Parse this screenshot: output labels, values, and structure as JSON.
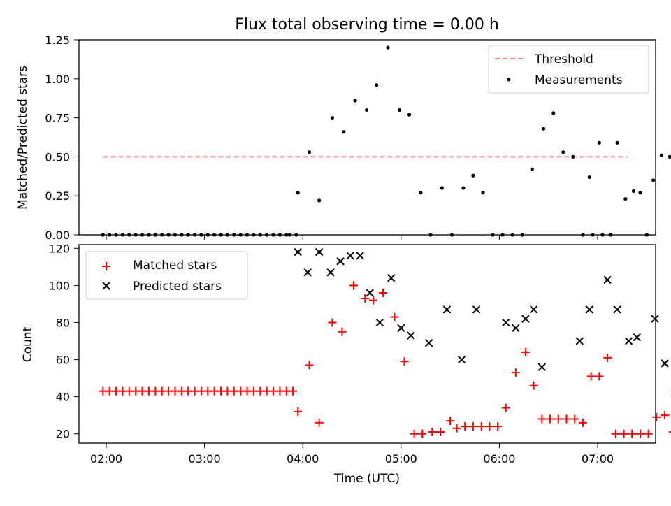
{
  "chart_data": [
    {
      "type": "scatter",
      "title": "Flux total observing time = 0.00 h",
      "xlabel": "",
      "ylabel": "Matched/Predicted stars",
      "ylim": [
        0,
        1.25
      ],
      "yticks": [
        "0.00",
        "0.25",
        "0.50",
        "0.75",
        "1.00",
        "1.25"
      ],
      "legend_position": "top-right",
      "threshold": {
        "name": "Threshold",
        "value": 0.5,
        "x_start": "01:58",
        "x_end": "07:18",
        "color": "#ff7f7f"
      },
      "series": [
        {
          "name": "Measurements",
          "color": "#000000",
          "marker": "dot",
          "points": [
            [
              "01:58",
              0
            ],
            [
              "02:06",
              0
            ],
            [
              "02:14",
              0
            ],
            [
              "02:22",
              0
            ],
            [
              "02:30",
              0
            ],
            [
              "02:38",
              0
            ],
            [
              "02:46",
              0
            ],
            [
              "02:54",
              0
            ],
            [
              "03:02",
              0
            ],
            [
              "03:10",
              0
            ],
            [
              "03:18",
              0
            ],
            [
              "03:26",
              0
            ],
            [
              "03:34",
              0
            ],
            [
              "03:42",
              0
            ],
            [
              "03:50",
              0
            ],
            [
              "03:56",
              0
            ],
            [
              "02:02",
              0
            ],
            [
              "02:10",
              0
            ],
            [
              "02:18",
              0
            ],
            [
              "02:26",
              0
            ],
            [
              "02:34",
              0
            ],
            [
              "02:42",
              0
            ],
            [
              "02:50",
              0
            ],
            [
              "02:58",
              0
            ],
            [
              "03:06",
              0
            ],
            [
              "03:14",
              0
            ],
            [
              "03:22",
              0
            ],
            [
              "03:30",
              0
            ],
            [
              "03:38",
              0
            ],
            [
              "03:46",
              0
            ],
            [
              "03:52",
              0
            ],
            [
              "03:57",
              0.27
            ],
            [
              "04:04",
              0.53
            ],
            [
              "04:10",
              0.22
            ],
            [
              "04:18",
              0.75
            ],
            [
              "04:25",
              0.66
            ],
            [
              "04:32",
              0.86
            ],
            [
              "04:39",
              0.8
            ],
            [
              "04:45",
              0.96
            ],
            [
              "04:52",
              1.2
            ],
            [
              "04:59",
              0.8
            ],
            [
              "05:05",
              0.77
            ],
            [
              "05:12",
              0.27
            ],
            [
              "05:18",
              0
            ],
            [
              "05:25",
              0.3
            ],
            [
              "05:31",
              0
            ],
            [
              "05:38",
              0.3
            ],
            [
              "05:44",
              0.38
            ],
            [
              "05:50",
              0.27
            ],
            [
              "05:56",
              0
            ],
            [
              "06:02",
              0
            ],
            [
              "06:08",
              0
            ],
            [
              "06:14",
              0
            ],
            [
              "06:20",
              0.42
            ],
            [
              "06:27",
              0.68
            ],
            [
              "06:33",
              0.78
            ],
            [
              "06:39",
              0.53
            ],
            [
              "06:45",
              0.5
            ],
            [
              "06:51",
              0
            ],
            [
              "06:57",
              0
            ],
            [
              "07:03",
              0
            ],
            [
              "06:55",
              0.37
            ],
            [
              "07:01",
              0.59
            ],
            [
              "07:08",
              0
            ],
            [
              "07:12",
              0.59
            ],
            [
              "07:17",
              0.23
            ],
            [
              "07:22",
              0.28
            ],
            [
              "07:26",
              0.27
            ],
            [
              "07:30",
              0
            ],
            [
              "07:34",
              0.35
            ],
            [
              "07:39",
              0.51
            ],
            [
              "07:44",
              0.5
            ]
          ]
        }
      ]
    },
    {
      "type": "scatter",
      "title": "",
      "xlabel": "Time (UTC)",
      "ylabel": "Count",
      "ylim": [
        15,
        122
      ],
      "yticks": [
        "20",
        "40",
        "60",
        "80",
        "100",
        "120"
      ],
      "xticks": [
        "02:00",
        "03:00",
        "04:00",
        "05:00",
        "06:00",
        "07:00"
      ],
      "legend_position": "top-left",
      "series": [
        {
          "name": "Matched stars",
          "color": "#ff0000",
          "marker": "plus",
          "points": [
            [
              "01:58",
              43
            ],
            [
              "02:02",
              43
            ],
            [
              "02:06",
              43
            ],
            [
              "02:10",
              43
            ],
            [
              "02:14",
              43
            ],
            [
              "02:18",
              43
            ],
            [
              "02:22",
              43
            ],
            [
              "02:26",
              43
            ],
            [
              "02:30",
              43
            ],
            [
              "02:34",
              43
            ],
            [
              "02:38",
              43
            ],
            [
              "02:42",
              43
            ],
            [
              "02:46",
              43
            ],
            [
              "02:50",
              43
            ],
            [
              "02:54",
              43
            ],
            [
              "02:58",
              43
            ],
            [
              "03:02",
              43
            ],
            [
              "03:06",
              43
            ],
            [
              "03:10",
              43
            ],
            [
              "03:14",
              43
            ],
            [
              "03:18",
              43
            ],
            [
              "03:22",
              43
            ],
            [
              "03:26",
              43
            ],
            [
              "03:30",
              43
            ],
            [
              "03:34",
              43
            ],
            [
              "03:38",
              43
            ],
            [
              "03:42",
              43
            ],
            [
              "03:46",
              43
            ],
            [
              "03:50",
              43
            ],
            [
              "03:54",
              43
            ],
            [
              "03:57",
              32
            ],
            [
              "04:04",
              57
            ],
            [
              "04:10",
              26
            ],
            [
              "04:18",
              80
            ],
            [
              "04:24",
              75
            ],
            [
              "04:31",
              100
            ],
            [
              "04:38",
              93
            ],
            [
              "04:43",
              92
            ],
            [
              "04:49",
              96
            ],
            [
              "04:56",
              83
            ],
            [
              "05:02",
              59
            ],
            [
              "05:08",
              20
            ],
            [
              "05:13",
              20
            ],
            [
              "05:19",
              21
            ],
            [
              "05:24",
              21
            ],
            [
              "05:30",
              27
            ],
            [
              "05:34",
              23
            ],
            [
              "05:39",
              24
            ],
            [
              "05:44",
              24
            ],
            [
              "05:49",
              24
            ],
            [
              "05:54",
              24
            ],
            [
              "05:59",
              24
            ],
            [
              "06:04",
              34
            ],
            [
              "06:10",
              53
            ],
            [
              "06:16",
              64
            ],
            [
              "06:21",
              46
            ],
            [
              "06:26",
              28
            ],
            [
              "06:31",
              28
            ],
            [
              "06:36",
              28
            ],
            [
              "06:41",
              28
            ],
            [
              "06:46",
              28
            ],
            [
              "06:51",
              26
            ],
            [
              "06:56",
              51
            ],
            [
              "07:01",
              51
            ],
            [
              "07:06",
              61
            ],
            [
              "07:11",
              20
            ],
            [
              "07:16",
              20
            ],
            [
              "07:21",
              20
            ],
            [
              "07:26",
              20
            ],
            [
              "07:31",
              20
            ],
            [
              "07:36",
              29
            ],
            [
              "07:41",
              30
            ],
            [
              "07:46",
              21
            ]
          ]
        },
        {
          "name": "Predicted stars",
          "color": "#000000",
          "marker": "x",
          "points": [
            [
              "03:57",
              118
            ],
            [
              "04:03",
              107
            ],
            [
              "04:10",
              118
            ],
            [
              "04:17",
              107
            ],
            [
              "04:23",
              113
            ],
            [
              "04:29",
              116
            ],
            [
              "04:35",
              116
            ],
            [
              "04:41",
              96
            ],
            [
              "04:47",
              80
            ],
            [
              "04:54",
              104
            ],
            [
              "05:00",
              77
            ],
            [
              "05:06",
              73
            ],
            [
              "05:17",
              69
            ],
            [
              "05:28",
              87
            ],
            [
              "05:37",
              60
            ],
            [
              "05:46",
              87
            ],
            [
              "06:04",
              80
            ],
            [
              "06:10",
              77
            ],
            [
              "06:16",
              82
            ],
            [
              "06:21",
              87
            ],
            [
              "06:26",
              56
            ],
            [
              "06:49",
              70
            ],
            [
              "06:55",
              87
            ],
            [
              "07:06",
              103
            ],
            [
              "07:12",
              87
            ],
            [
              "07:19",
              70
            ],
            [
              "07:24",
              72
            ],
            [
              "07:35",
              82
            ],
            [
              "07:41",
              58
            ],
            [
              "07:47",
              42
            ]
          ]
        }
      ]
    }
  ]
}
